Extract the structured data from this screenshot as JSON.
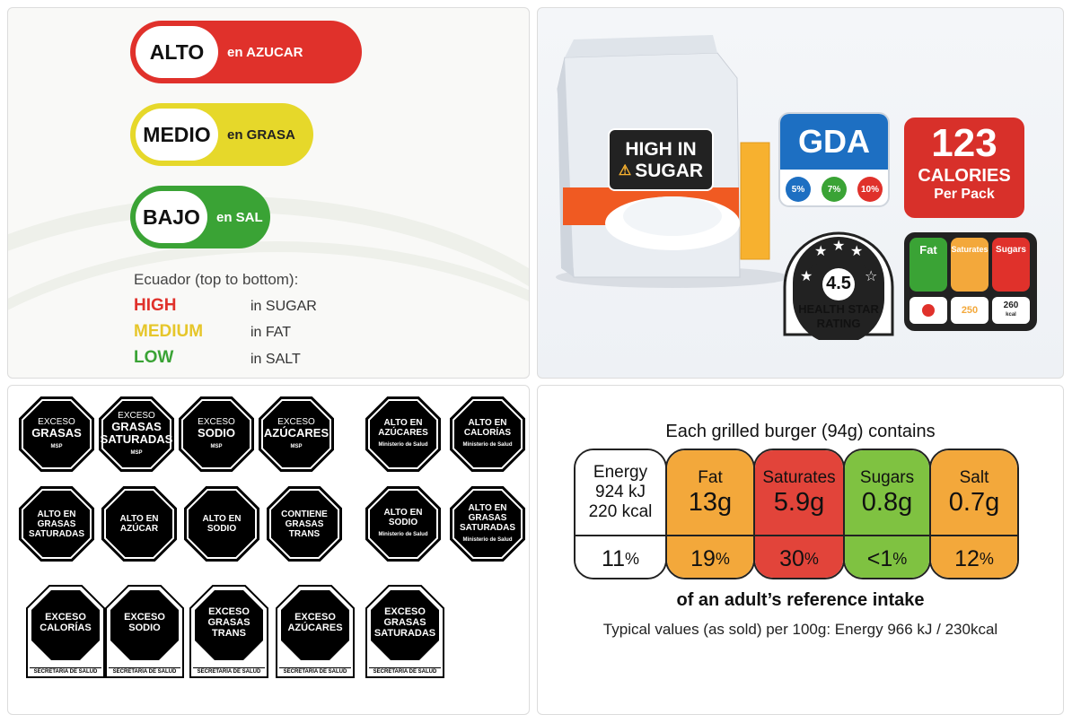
{
  "ecuador": {
    "pills": [
      {
        "level": "ALTO",
        "nutrient": "en AZUCAR",
        "color": "#e0312b"
      },
      {
        "level": "MEDIO",
        "nutrient": "en GRASA",
        "color": "#e6d82a"
      },
      {
        "level": "BAJO",
        "nutrient": "en SAL",
        "color": "#3aa335"
      }
    ],
    "legend_title": "Ecuador (top to bottom):",
    "legend": [
      {
        "level": "HIGH",
        "nutrient": "in SUGAR",
        "color": "#e0312b"
      },
      {
        "level": "MEDIUM",
        "nutrient": "in FAT",
        "color": "#e6c62a"
      },
      {
        "level": "LOW",
        "nutrient": "in SALT",
        "color": "#3aa335"
      }
    ]
  },
  "labels_panel": {
    "bag_warning": [
      "HIGH IN",
      "SUGAR"
    ],
    "gda": {
      "title": "GDA",
      "values": [
        "5%",
        "7%",
        "10%"
      ]
    },
    "calories": {
      "number": "123",
      "unit": "CALORIES",
      "sub": "Per Pack"
    },
    "health_star": {
      "rating": "4.5",
      "line1": "HEALTH STAR",
      "line2": "RATING"
    },
    "mtl": {
      "heads": [
        "Fat",
        "Saturates",
        "Sugars"
      ],
      "values": [
        "250",
        "260"
      ],
      "unit": "kcal"
    }
  },
  "octagons": {
    "row1": [
      {
        "top": "EXCESO",
        "big": "GRASAS",
        "foot": "MSP"
      },
      {
        "top": "EXCESO",
        "big": "GRASAS SATURADAS",
        "foot": "MSP"
      },
      {
        "top": "EXCESO",
        "big": "SODIO",
        "foot": "MSP"
      },
      {
        "top": "EXCESO",
        "big": "AZÚCARES",
        "foot": "MSP"
      }
    ],
    "row1_right": [
      {
        "big": "ALTO EN AZÚCARES",
        "foot": "Ministerio de Salud"
      },
      {
        "big": "ALTO EN CALORÍAS",
        "foot": "Ministerio de Salud"
      }
    ],
    "row2": [
      {
        "big": "ALTO EN GRASAS SATURADAS"
      },
      {
        "big": "ALTO EN AZÚCAR"
      },
      {
        "big": "ALTO EN SODIO"
      },
      {
        "big": "CONTIENE GRASAS TRANS"
      }
    ],
    "row2_right": [
      {
        "big": "ALTO EN SODIO",
        "foot": "Ministerio de Salud"
      },
      {
        "big": "ALTO EN GRASAS SATURADAS",
        "foot": "Ministerio de Salud"
      }
    ],
    "row3": [
      {
        "big": "EXCESO CALORÍAS"
      },
      {
        "big": "EXCESO SODIO"
      },
      {
        "big": "EXCESO GRASAS TRANS"
      },
      {
        "big": "EXCESO AZÚCARES"
      },
      {
        "big": "EXCESO GRASAS SATURADAS"
      }
    ],
    "row3_foot": "SECRETARÍA DE SALUD"
  },
  "uk": {
    "title": "Each grilled burger (94g) contains",
    "cells": [
      {
        "name": "Energy",
        "value": "924 kJ",
        "value2": "220 kcal",
        "pct": "11",
        "color": "#ffffff"
      },
      {
        "name": "Fat",
        "value": "13g",
        "pct": "19",
        "color": "#f3a83b"
      },
      {
        "name": "Saturates",
        "value": "5.9g",
        "pct": "30",
        "color": "#e2443a"
      },
      {
        "name": "Sugars",
        "value": "0.8g",
        "pct": "<1",
        "color": "#7fc241"
      },
      {
        "name": "Salt",
        "value": "0.7g",
        "pct": "12",
        "color": "#f3a83b"
      }
    ],
    "pct_sign": "%",
    "reference": "of an adult’s reference intake",
    "typical": "Typical values (as sold) per 100g: Energy 966 kJ / 230kcal"
  }
}
